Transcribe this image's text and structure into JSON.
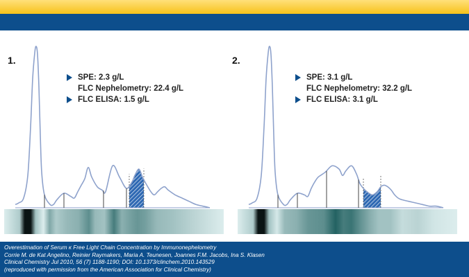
{
  "header": {
    "accent_yellow": "#f7c21a",
    "accent_blue": "#0d4e8c"
  },
  "chart_data": [
    {
      "type": "line",
      "panel_label": "1.",
      "legend": [
        {
          "marker": true,
          "text": "SPE: 2.3 g/L"
        },
        {
          "marker": false,
          "text": "FLC Nephelometry: 22.4 g/L"
        },
        {
          "marker": true,
          "text": "FLC ELISA: 1.5 g/L"
        }
      ],
      "x": [
        0,
        5,
        12,
        18,
        22,
        25,
        28,
        30,
        32,
        34,
        36,
        38,
        42,
        50,
        55,
        60,
        70,
        80,
        85,
        90,
        95,
        100,
        105,
        110,
        118,
        125,
        130,
        140,
        150,
        160,
        168,
        172,
        178,
        183,
        188,
        195,
        200,
        205,
        210,
        215,
        220,
        230,
        240,
        250,
        260,
        270,
        280
      ],
      "values": [
        2,
        3,
        6,
        20,
        50,
        80,
        96,
        100,
        95,
        75,
        45,
        22,
        8,
        2,
        2,
        5,
        9,
        7,
        6,
        10,
        14,
        18,
        25,
        19,
        13,
        11,
        10,
        26,
        19,
        12,
        16,
        20,
        24,
        19,
        15,
        10,
        8,
        10,
        12,
        13,
        11,
        8,
        6,
        4,
        2,
        1,
        0
      ],
      "dividers": [
        {
          "x": 42,
          "h": 6
        },
        {
          "x": 70,
          "h": 10
        },
        {
          "x": 127,
          "h": 12
        },
        {
          "x": 160,
          "h": 13
        }
      ],
      "peak_region": [
        164,
        185
      ],
      "band_stops": [
        {
          "x": 0,
          "i": 0.05
        },
        {
          "x": 20,
          "i": 0.25
        },
        {
          "x": 26,
          "i": 0.95
        },
        {
          "x": 30,
          "i": 1.0
        },
        {
          "x": 34,
          "i": 0.95
        },
        {
          "x": 40,
          "i": 0.3
        },
        {
          "x": 50,
          "i": 0.05
        },
        {
          "x": 58,
          "i": 0.45
        },
        {
          "x": 66,
          "i": 0.25
        },
        {
          "x": 80,
          "i": 0.35
        },
        {
          "x": 95,
          "i": 0.4
        },
        {
          "x": 108,
          "i": 0.6
        },
        {
          "x": 116,
          "i": 0.35
        },
        {
          "x": 128,
          "i": 0.3
        },
        {
          "x": 140,
          "i": 0.7
        },
        {
          "x": 150,
          "i": 0.4
        },
        {
          "x": 162,
          "i": 0.5
        },
        {
          "x": 170,
          "i": 0.55
        },
        {
          "x": 180,
          "i": 0.5
        },
        {
          "x": 195,
          "i": 0.35
        },
        {
          "x": 215,
          "i": 0.3
        },
        {
          "x": 240,
          "i": 0.2
        },
        {
          "x": 280,
          "i": 0.05
        }
      ]
    },
    {
      "type": "line",
      "panel_label": "2.",
      "legend": [
        {
          "marker": true,
          "text": "SPE: 3.1 g/L"
        },
        {
          "marker": false,
          "text": "FLC Nephelometry: 32.2 g/L"
        },
        {
          "marker": true,
          "text": "FLC ELISA: 3.1 g/L"
        }
      ],
      "x": [
        0,
        5,
        12,
        18,
        22,
        25,
        28,
        30,
        32,
        34,
        36,
        38,
        42,
        50,
        55,
        60,
        70,
        80,
        85,
        90,
        95,
        100,
        110,
        120,
        130,
        135,
        140,
        148,
        155,
        160,
        165,
        170,
        178,
        185,
        190,
        195,
        200,
        205,
        210,
        215,
        220,
        230,
        240,
        250,
        260,
        270,
        280
      ],
      "values": [
        2,
        3,
        6,
        20,
        50,
        80,
        96,
        100,
        95,
        75,
        45,
        22,
        8,
        2,
        2,
        5,
        9,
        8,
        7,
        12,
        16,
        19,
        22,
        26,
        24,
        20,
        23,
        26,
        21,
        15,
        12,
        10,
        8,
        10,
        13,
        14,
        13,
        11,
        8,
        6,
        5,
        4,
        3,
        2,
        1,
        1,
        0
      ],
      "dividers": [
        {
          "x": 42,
          "h": 6
        },
        {
          "x": 70,
          "h": 10
        },
        {
          "x": 112,
          "h": 13
        },
        {
          "x": 158,
          "h": 15
        }
      ],
      "peak_region": [
        165,
        190
      ],
      "band_stops": [
        {
          "x": 0,
          "i": 0.05
        },
        {
          "x": 20,
          "i": 0.25
        },
        {
          "x": 26,
          "i": 0.95
        },
        {
          "x": 30,
          "i": 1.0
        },
        {
          "x": 34,
          "i": 0.95
        },
        {
          "x": 40,
          "i": 0.3
        },
        {
          "x": 50,
          "i": 0.08
        },
        {
          "x": 60,
          "i": 0.35
        },
        {
          "x": 75,
          "i": 0.4
        },
        {
          "x": 90,
          "i": 0.55
        },
        {
          "x": 110,
          "i": 0.6
        },
        {
          "x": 125,
          "i": 0.85
        },
        {
          "x": 135,
          "i": 0.7
        },
        {
          "x": 145,
          "i": 0.75
        },
        {
          "x": 155,
          "i": 0.6
        },
        {
          "x": 170,
          "i": 0.4
        },
        {
          "x": 180,
          "i": 0.3
        },
        {
          "x": 195,
          "i": 0.3
        },
        {
          "x": 210,
          "i": 0.15
        },
        {
          "x": 230,
          "i": 0.2
        },
        {
          "x": 250,
          "i": 0.1
        },
        {
          "x": 280,
          "i": 0.05
        }
      ]
    }
  ],
  "footer": {
    "lines": [
      "Overestimation of Serum κ Free Light Chain Concentration by Immunonephelometry",
      "Corrie M. de Kat Angelino, Reinier Raymakers, Maria A. Teunesen, Joannes F.M. Jacobs, Ina S. Klasen",
      "Clinical Chemistry Jul 2010, 56 (7) 1188-1190; DOI: 10.1373/clinchem.2010.143529",
      "(reproduced with permission from the American Association for Clinical Chemistry)"
    ]
  }
}
